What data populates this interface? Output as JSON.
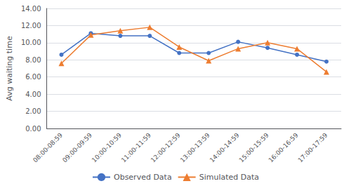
{
  "chart_data": {
    "type": "line",
    "categories": [
      "08:00-08:59",
      "09:00-09:59",
      "10:00-10:59",
      "11:00-11:59",
      "12:00-12:59",
      "13:00-13:59",
      "14:00-14:59",
      "15:00-15:59",
      "16:00-16:59",
      "17:00-17:59"
    ],
    "series": [
      {
        "name": "Observed Data",
        "color": "#4472C4",
        "marker": "circle",
        "values": [
          8.6,
          11.1,
          10.8,
          10.8,
          8.8,
          8.8,
          10.1,
          9.4,
          8.6,
          7.8
        ]
      },
      {
        "name": "Simulated Data",
        "color": "#ED7D31",
        "marker": "triangle",
        "values": [
          7.6,
          10.9,
          11.4,
          11.8,
          9.5,
          7.9,
          9.3,
          10.0,
          9.3,
          6.6
        ]
      }
    ],
    "ylabel": "Avg waiting time",
    "ylim": [
      0,
      14
    ],
    "yticks": [
      {
        "value": 0,
        "label": "0.00"
      },
      {
        "value": 2,
        "label": "2.00"
      },
      {
        "value": 4,
        "label": "4.00"
      },
      {
        "value": 6,
        "label": "6.00"
      },
      {
        "value": 8,
        "label": "8.00"
      },
      {
        "value": 10,
        "label": "10.00"
      },
      {
        "value": 12,
        "label": "12.00"
      },
      {
        "value": 14,
        "label": "14.00"
      }
    ],
    "grid": true,
    "legend": "bottom"
  }
}
